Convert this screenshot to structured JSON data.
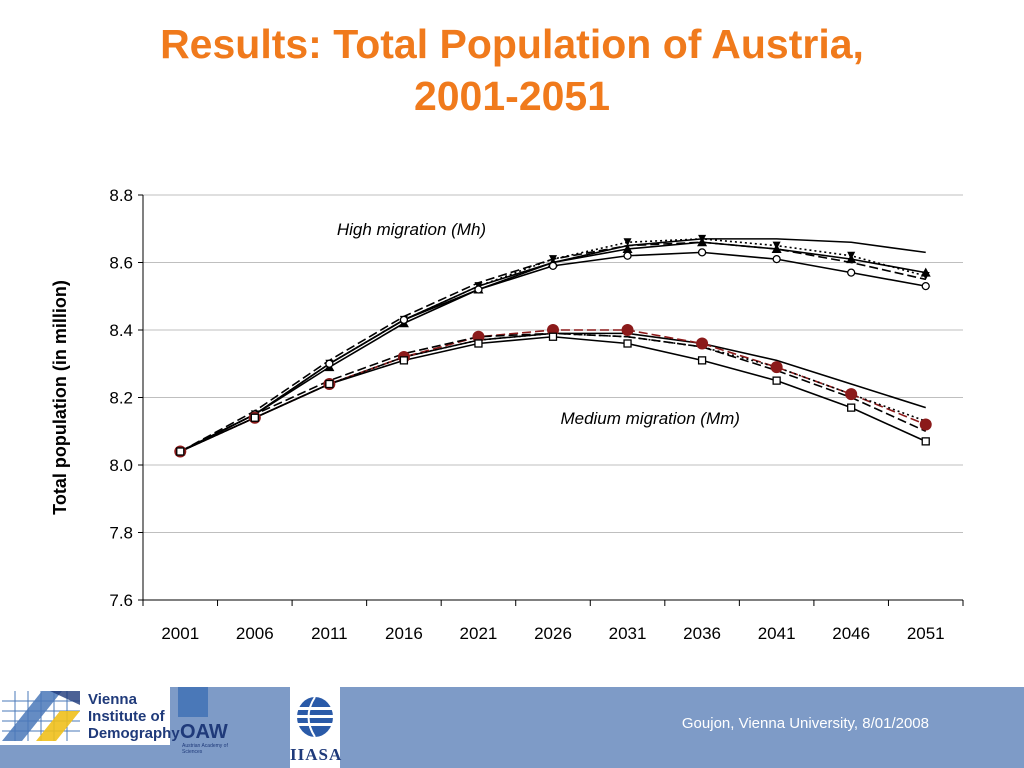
{
  "slide": {
    "title_line1": "Results: Total Population of Austria,",
    "title_line2": "2001-2051"
  },
  "footer": {
    "credit": "Goujon,  Vienna University, 8/01/2008",
    "logo_vid_lines": [
      "Vienna",
      "Institute of",
      "Demography"
    ],
    "logo_oaw": "OAW",
    "logo_oaw_sub": "Austrian Academy of Sciences",
    "logo_iiasa": "IIASA"
  },
  "colors": {
    "title": "#f07a1c",
    "footer_bg": "#7e9bc7",
    "series_default": "#000000",
    "series_highlight": "#8b1a1a",
    "grid": "#bfbfbf"
  },
  "chart_data": {
    "type": "line",
    "title": "",
    "xlabel": "",
    "ylabel": "Total population (in million)",
    "ylim": [
      7.6,
      8.8
    ],
    "yticks": [
      "7.6",
      "7.8",
      "8.0",
      "8.2",
      "8.4",
      "8.6",
      "8.8"
    ],
    "grid": true,
    "legend": "none",
    "categories": [
      "2001",
      "2006",
      "2011",
      "2016",
      "2021",
      "2026",
      "2031",
      "2036",
      "2041",
      "2046",
      "2051"
    ],
    "annotations": [
      {
        "text": "High migration (Mh)",
        "x": "2016",
        "y": 8.7
      },
      {
        "text": "Medium migration (Mm)",
        "x": "2031",
        "y": 8.14
      }
    ],
    "series": [
      {
        "group": "Mh",
        "marker": "none",
        "dash": "solid",
        "color": "#000000",
        "values": [
          8.04,
          8.15,
          8.3,
          8.43,
          8.53,
          8.6,
          8.65,
          8.67,
          8.67,
          8.66,
          8.63
        ]
      },
      {
        "group": "Mh",
        "marker": "triangle",
        "dash": "solid",
        "color": "#000000",
        "values": [
          8.04,
          8.15,
          8.29,
          8.42,
          8.52,
          8.6,
          8.64,
          8.66,
          8.64,
          8.61,
          8.57
        ]
      },
      {
        "group": "Mh",
        "marker": "star",
        "dash": "dotted",
        "color": "#000000",
        "values": [
          8.04,
          8.15,
          8.3,
          8.43,
          8.53,
          8.61,
          8.66,
          8.67,
          8.65,
          8.62,
          8.56
        ]
      },
      {
        "group": "Mh",
        "marker": "none",
        "dash": "dashed",
        "color": "#000000",
        "values": [
          8.04,
          8.16,
          8.31,
          8.44,
          8.54,
          8.61,
          8.65,
          8.66,
          8.64,
          8.6,
          8.55
        ]
      },
      {
        "group": "Mh",
        "marker": "open-circle",
        "dash": "solid",
        "color": "#000000",
        "values": [
          8.04,
          8.15,
          8.3,
          8.43,
          8.52,
          8.59,
          8.62,
          8.63,
          8.61,
          8.57,
          8.53
        ]
      },
      {
        "group": "Mm",
        "marker": "none",
        "dash": "solid",
        "color": "#000000",
        "values": [
          8.04,
          8.14,
          8.24,
          8.32,
          8.37,
          8.39,
          8.39,
          8.36,
          8.31,
          8.24,
          8.17
        ]
      },
      {
        "group": "Mm",
        "marker": "filled-circle",
        "dash": "dashed",
        "color": "#8b1a1a",
        "values": [
          8.04,
          8.14,
          8.24,
          8.32,
          8.38,
          8.4,
          8.4,
          8.36,
          8.29,
          8.21,
          8.12
        ]
      },
      {
        "group": "Mm",
        "marker": "none",
        "dash": "dotted",
        "color": "#000000",
        "values": [
          8.04,
          8.14,
          8.24,
          8.32,
          8.37,
          8.39,
          8.38,
          8.35,
          8.29,
          8.21,
          8.13
        ]
      },
      {
        "group": "Mm",
        "marker": "none",
        "dash": "dashed",
        "color": "#000000",
        "values": [
          8.04,
          8.15,
          8.25,
          8.33,
          8.38,
          8.39,
          8.38,
          8.35,
          8.28,
          8.2,
          8.1
        ]
      },
      {
        "group": "Mm",
        "marker": "open-square",
        "dash": "solid",
        "color": "#000000",
        "values": [
          8.04,
          8.14,
          8.24,
          8.31,
          8.36,
          8.38,
          8.36,
          8.31,
          8.25,
          8.17,
          8.07
        ]
      }
    ]
  }
}
